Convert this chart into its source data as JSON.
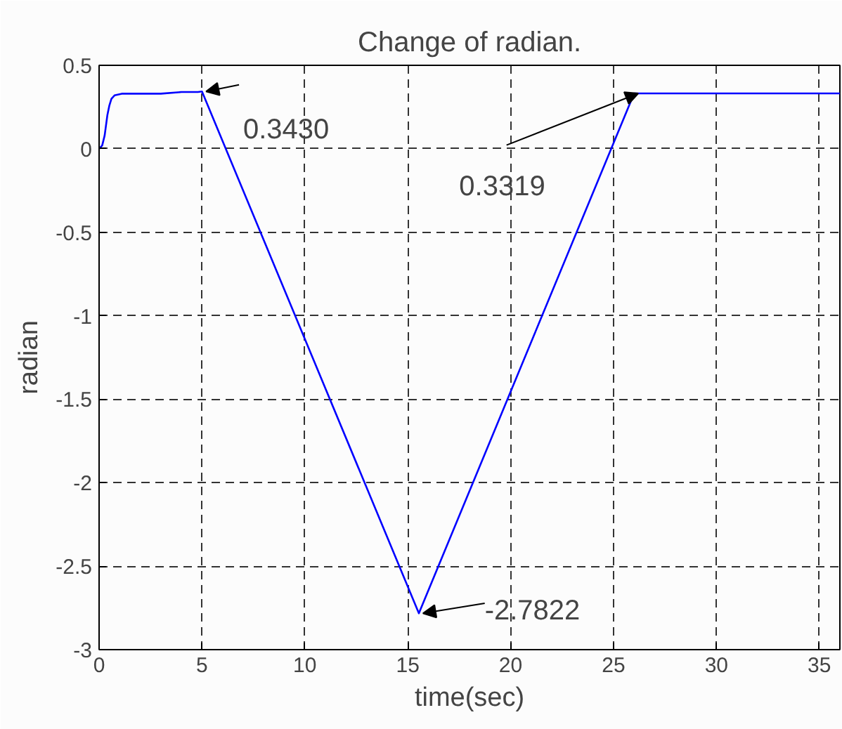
{
  "chart_data": {
    "type": "line",
    "title": "Change of radian.",
    "xlabel": "time(sec)",
    "ylabel": "radian",
    "x": [
      0,
      0.15,
      0.27,
      0.4,
      0.5,
      0.6,
      0.75,
      1.1,
      2,
      3,
      4,
      4.8,
      5,
      15.54,
      26,
      30,
      36
    ],
    "series": [
      {
        "color": "#0000ff",
        "values": [
          0,
          0.02,
          0.08,
          0.2,
          0.26,
          0.3,
          0.32,
          0.33,
          0.33,
          0.33,
          0.34,
          0.34,
          0.343,
          -2.7822,
          0.3319,
          0.3319,
          0.3319
        ]
      }
    ],
    "xlim": [
      0,
      36
    ],
    "ylim": [
      -3,
      0.5
    ],
    "xticks": [
      0,
      5,
      10,
      15,
      20,
      25,
      30,
      35
    ],
    "yticks": [
      -3,
      -2.5,
      -2,
      -1.5,
      -1,
      -0.5,
      0,
      0.5
    ],
    "grid": true,
    "line_style": "solid",
    "marker": "none",
    "annotations": [
      {
        "text": "0.3430",
        "x": 5,
        "y": 0.343
      },
      {
        "text": "0.3319",
        "x": 26,
        "y": 0.3319
      },
      {
        "text": "-2.7822",
        "x": 15.54,
        "y": -2.7822
      }
    ]
  }
}
